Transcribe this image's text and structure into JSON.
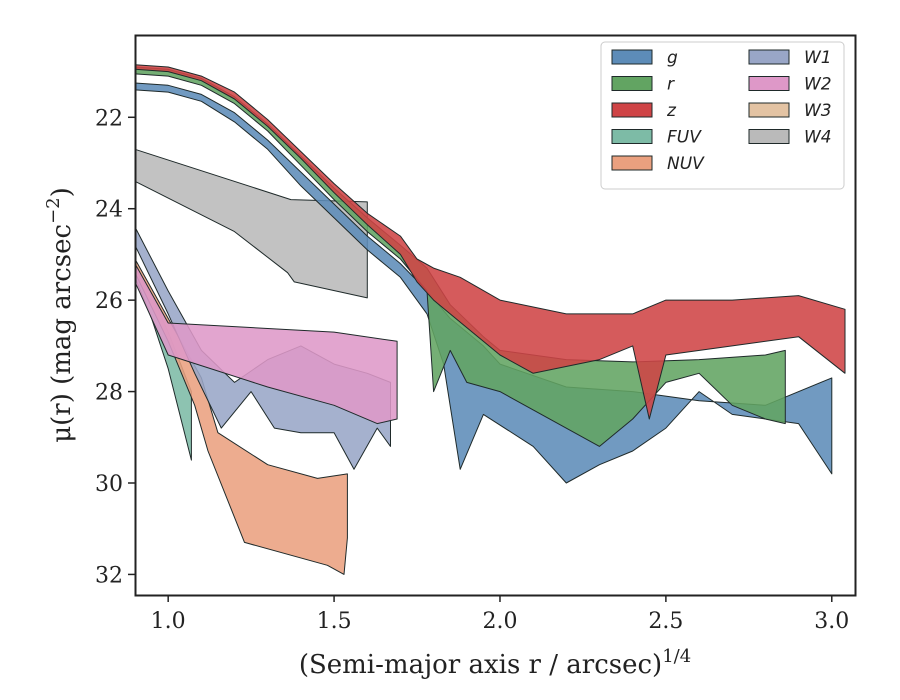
{
  "chart_data": {
    "type": "area",
    "title": "",
    "xlabel": "(Semi-major axis r / arcsec)",
    "xlabel_exp": "1/4",
    "ylabel_main": "μ(r) (mag arcsec",
    "ylabel_exp": "−2",
    "ylabel_close": ")",
    "xlim": [
      0.9,
      3.07
    ],
    "ylim": [
      32.45,
      20.2
    ],
    "y_inverted": true,
    "xticks": [
      1.0,
      1.5,
      2.0,
      2.5,
      3.0
    ],
    "xtick_labels": [
      "1.0",
      "1.5",
      "2.0",
      "2.5",
      "3.0"
    ],
    "yticks": [
      22,
      24,
      26,
      28,
      30,
      32
    ],
    "ytick_labels": [
      "22",
      "24",
      "26",
      "28",
      "30",
      "32"
    ],
    "grid": false,
    "legend_position": "top-right",
    "legend_columns": 2,
    "series": [
      {
        "name": "FUV",
        "color": "#7dbba6",
        "upper": [
          [
            0.9,
            25.3
          ],
          [
            0.95,
            25.9
          ],
          [
            1.0,
            26.7
          ],
          [
            1.07,
            28.0
          ]
        ],
        "lower": [
          [
            0.9,
            25.5
          ],
          [
            0.95,
            26.4
          ],
          [
            1.0,
            27.5
          ],
          [
            1.07,
            29.5
          ]
        ]
      },
      {
        "name": "NUV",
        "color": "#eaa07f",
        "upper": [
          [
            0.9,
            25.1
          ],
          [
            1.0,
            26.4
          ],
          [
            1.1,
            27.7
          ],
          [
            1.15,
            28.9
          ],
          [
            1.3,
            29.6
          ],
          [
            1.45,
            29.9
          ],
          [
            1.54,
            29.8
          ]
        ],
        "lower": [
          [
            0.9,
            25.4
          ],
          [
            1.0,
            26.9
          ],
          [
            1.08,
            28.3
          ],
          [
            1.12,
            29.3
          ],
          [
            1.23,
            31.3
          ],
          [
            1.48,
            31.8
          ],
          [
            1.53,
            32.0
          ],
          [
            1.54,
            31.2
          ]
        ]
      },
      {
        "name": "W1",
        "color": "#99a6c7",
        "upper": [
          [
            0.9,
            24.4
          ],
          [
            1.0,
            25.8
          ],
          [
            1.1,
            27.1
          ],
          [
            1.2,
            27.8
          ],
          [
            1.3,
            27.3
          ],
          [
            1.4,
            27.0
          ],
          [
            1.5,
            27.4
          ],
          [
            1.6,
            27.6
          ],
          [
            1.67,
            27.8
          ]
        ],
        "lower": [
          [
            0.9,
            24.8
          ],
          [
            1.0,
            26.3
          ],
          [
            1.08,
            27.6
          ],
          [
            1.16,
            28.8
          ],
          [
            1.25,
            28.0
          ],
          [
            1.32,
            28.8
          ],
          [
            1.4,
            28.9
          ],
          [
            1.5,
            28.9
          ],
          [
            1.56,
            29.7
          ],
          [
            1.63,
            28.8
          ],
          [
            1.67,
            29.2
          ]
        ]
      },
      {
        "name": "W2",
        "color": "#de98c8",
        "upper": [
          [
            0.9,
            25.2
          ],
          [
            1.0,
            26.5
          ],
          [
            1.5,
            26.7
          ],
          [
            1.69,
            26.9
          ]
        ],
        "lower": [
          [
            0.9,
            25.6
          ],
          [
            1.0,
            27.2
          ],
          [
            1.3,
            27.9
          ],
          [
            1.5,
            28.3
          ],
          [
            1.63,
            28.7
          ],
          [
            1.69,
            28.6
          ]
        ]
      },
      {
        "name": "W4",
        "color": "#bababa",
        "upper": [
          [
            0.9,
            22.7
          ],
          [
            1.37,
            23.8
          ],
          [
            1.6,
            23.85
          ]
        ],
        "lower": [
          [
            0.9,
            23.4
          ],
          [
            1.2,
            24.5
          ],
          [
            1.36,
            25.4
          ],
          [
            1.38,
            25.6
          ],
          [
            1.6,
            25.95
          ]
        ]
      },
      {
        "name": "g",
        "color": "#5d8cb8",
        "upper": [
          [
            0.9,
            21.25
          ],
          [
            1.0,
            21.3
          ],
          [
            1.1,
            21.5
          ],
          [
            1.2,
            21.9
          ],
          [
            1.3,
            22.5
          ],
          [
            1.4,
            23.2
          ],
          [
            1.5,
            23.9
          ],
          [
            1.6,
            24.6
          ],
          [
            1.7,
            25.2
          ],
          [
            1.78,
            25.8
          ],
          [
            1.85,
            26.4
          ],
          [
            1.95,
            27.0
          ],
          [
            2.0,
            27.4
          ],
          [
            2.2,
            27.9
          ],
          [
            2.4,
            28.0
          ],
          [
            2.6,
            28.2
          ],
          [
            2.8,
            28.3
          ],
          [
            3.0,
            27.7
          ]
        ],
        "lower": [
          [
            0.9,
            21.4
          ],
          [
            1.0,
            21.45
          ],
          [
            1.1,
            21.65
          ],
          [
            1.2,
            22.1
          ],
          [
            1.3,
            22.7
          ],
          [
            1.4,
            23.5
          ],
          [
            1.5,
            24.2
          ],
          [
            1.6,
            24.9
          ],
          [
            1.7,
            25.5
          ],
          [
            1.78,
            26.3
          ],
          [
            1.83,
            27.4
          ],
          [
            1.88,
            29.7
          ],
          [
            1.95,
            28.5
          ],
          [
            2.1,
            29.2
          ],
          [
            2.2,
            30.0
          ],
          [
            2.3,
            29.6
          ],
          [
            2.4,
            29.3
          ],
          [
            2.5,
            28.8
          ],
          [
            2.6,
            28.0
          ],
          [
            2.7,
            28.5
          ],
          [
            2.9,
            28.7
          ],
          [
            3.0,
            29.8
          ]
        ]
      },
      {
        "name": "r",
        "color": "#62a462",
        "upper": [
          [
            0.9,
            20.9
          ],
          [
            1.0,
            20.95
          ],
          [
            1.1,
            21.15
          ],
          [
            1.2,
            21.55
          ],
          [
            1.3,
            22.15
          ],
          [
            1.4,
            22.85
          ],
          [
            1.5,
            23.55
          ],
          [
            1.6,
            24.2
          ],
          [
            1.7,
            24.8
          ],
          [
            1.78,
            25.3
          ],
          [
            1.85,
            26.1
          ],
          [
            1.95,
            26.8
          ],
          [
            2.0,
            27.1
          ],
          [
            2.2,
            27.3
          ],
          [
            2.4,
            27.35
          ],
          [
            2.6,
            27.3
          ],
          [
            2.8,
            27.2
          ],
          [
            2.86,
            27.1
          ]
        ],
        "lower": [
          [
            0.9,
            21.05
          ],
          [
            1.0,
            21.1
          ],
          [
            1.1,
            21.3
          ],
          [
            1.2,
            21.7
          ],
          [
            1.3,
            22.3
          ],
          [
            1.4,
            23.05
          ],
          [
            1.5,
            23.8
          ],
          [
            1.6,
            24.5
          ],
          [
            1.7,
            25.1
          ],
          [
            1.78,
            25.8
          ],
          [
            1.8,
            28.0
          ],
          [
            1.85,
            27.1
          ],
          [
            1.9,
            27.8
          ],
          [
            2.0,
            28.0
          ],
          [
            2.1,
            28.4
          ],
          [
            2.3,
            29.2
          ],
          [
            2.4,
            28.6
          ],
          [
            2.5,
            27.8
          ],
          [
            2.6,
            27.6
          ],
          [
            2.7,
            28.3
          ],
          [
            2.8,
            28.6
          ],
          [
            2.86,
            28.7
          ]
        ]
      },
      {
        "name": "z",
        "color": "#cf4446",
        "upper": [
          [
            0.9,
            20.85
          ],
          [
            1.0,
            20.9
          ],
          [
            1.1,
            21.1
          ],
          [
            1.2,
            21.45
          ],
          [
            1.3,
            22.05
          ],
          [
            1.4,
            22.75
          ],
          [
            1.5,
            23.45
          ],
          [
            1.6,
            24.1
          ],
          [
            1.7,
            24.6
          ],
          [
            1.75,
            25.1
          ],
          [
            1.8,
            25.3
          ],
          [
            1.88,
            25.5
          ],
          [
            2.0,
            26.0
          ],
          [
            2.2,
            26.3
          ],
          [
            2.4,
            26.3
          ],
          [
            2.5,
            26.0
          ],
          [
            2.7,
            26.0
          ],
          [
            2.9,
            25.9
          ],
          [
            3.04,
            26.2
          ]
        ],
        "lower": [
          [
            0.9,
            20.95
          ],
          [
            1.0,
            21.0
          ],
          [
            1.1,
            21.2
          ],
          [
            1.2,
            21.6
          ],
          [
            1.3,
            22.2
          ],
          [
            1.4,
            22.9
          ],
          [
            1.5,
            23.65
          ],
          [
            1.6,
            24.35
          ],
          [
            1.7,
            25.0
          ],
          [
            1.75,
            25.6
          ],
          [
            1.8,
            26.0
          ],
          [
            1.9,
            26.6
          ],
          [
            2.0,
            27.2
          ],
          [
            2.1,
            27.6
          ],
          [
            2.3,
            27.3
          ],
          [
            2.4,
            27.0
          ],
          [
            2.45,
            28.6
          ],
          [
            2.5,
            27.2
          ],
          [
            2.7,
            27.0
          ],
          [
            2.9,
            26.8
          ],
          [
            3.04,
            27.6
          ]
        ]
      }
    ],
    "legend": {
      "col1": [
        "g",
        "r",
        "z",
        "FUV",
        "NUV"
      ],
      "col2": [
        "W1",
        "W2",
        "W3",
        "W4"
      ],
      "colors": {
        "g": "#5d8cb8",
        "r": "#62a462",
        "z": "#cf4446",
        "FUV": "#7dbba6",
        "NUV": "#eaa07f",
        "W1": "#99a6c7",
        "W2": "#de98c8",
        "W3": "#e3c3a3",
        "W4": "#bababa"
      }
    }
  }
}
